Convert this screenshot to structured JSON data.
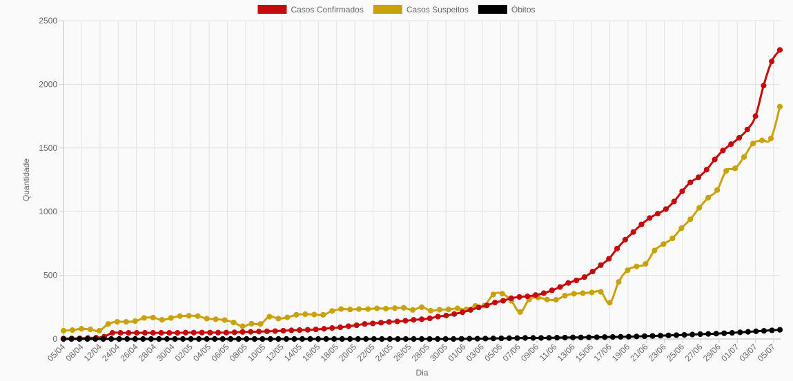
{
  "chart_data": {
    "type": "line",
    "title": "",
    "xlabel": "Dia",
    "ylabel": "Quantidade",
    "ylim": [
      0,
      2500
    ],
    "yticks": [
      0,
      500,
      1000,
      1500,
      2000,
      2500
    ],
    "grid": true,
    "legend_position": "top",
    "x_tick_labels": [
      "05/04",
      "08/04",
      "12/04",
      "24/04",
      "26/04",
      "28/04",
      "30/04",
      "02/05",
      "04/05",
      "06/05",
      "08/05",
      "10/05",
      "12/05",
      "14/05",
      "16/05",
      "18/05",
      "20/05",
      "22/05",
      "24/05",
      "26/05",
      "28/05",
      "30/05",
      "01/06",
      "03/06",
      "05/06",
      "07/06",
      "09/06",
      "11/06",
      "13/06",
      "15/06",
      "17/06",
      "19/06",
      "21/06",
      "23/06",
      "25/06",
      "27/06",
      "29/06",
      "01/07",
      "03/07",
      "05/07"
    ],
    "series": [
      {
        "name": "Casos Confirmados",
        "color": "#c40a0a",
        "values": [
          3,
          4,
          5,
          8,
          10,
          18,
          48,
          48,
          48,
          48,
          48,
          48,
          48,
          48,
          48,
          50,
          50,
          50,
          50,
          50,
          50,
          52,
          55,
          56,
          58,
          60,
          62,
          65,
          68,
          70,
          72,
          75,
          80,
          86,
          92,
          100,
          108,
          118,
          122,
          128,
          134,
          138,
          143,
          150,
          155,
          162,
          176,
          184,
          196,
          210,
          228,
          248,
          264,
          286,
          300,
          320,
          330,
          335,
          345,
          360,
          382,
          408,
          440,
          460,
          486,
          530,
          580,
          630,
          710,
          780,
          840,
          900,
          950,
          985,
          1020,
          1080,
          1160,
          1230,
          1270,
          1330,
          1410,
          1480,
          1530,
          1580,
          1645,
          1750,
          1990,
          2180,
          2270
        ]
      },
      {
        "name": "Casos Suspeitos",
        "color": "#c9a20a",
        "values": [
          65,
          70,
          80,
          75,
          65,
          118,
          135,
          135,
          140,
          165,
          168,
          150,
          165,
          180,
          182,
          180,
          160,
          155,
          148,
          130,
          100,
          120,
          118,
          175,
          160,
          170,
          190,
          195,
          192,
          190,
          220,
          235,
          232,
          235,
          235,
          240,
          238,
          242,
          245,
          228,
          250,
          222,
          230,
          232,
          240,
          232,
          260,
          262,
          350,
          355,
          300,
          212,
          310,
          325,
          310,
          308,
          340,
          355,
          360,
          365,
          370,
          285,
          448,
          540,
          570,
          590,
          695,
          745,
          790,
          870,
          940,
          1030,
          1110,
          1170,
          1320,
          1340,
          1430,
          1535,
          1560,
          1575,
          1825
        ]
      },
      {
        "name": "Óbitos",
        "color": "#000000",
        "values": [
          0,
          0,
          0,
          0,
          0,
          0,
          0,
          0,
          0,
          0,
          0,
          0,
          0,
          0,
          0,
          0,
          0,
          0,
          0,
          0,
          0,
          0,
          0,
          0,
          0,
          0,
          0,
          0,
          0,
          0,
          0,
          0,
          0,
          0,
          0,
          0,
          0,
          0,
          0,
          0,
          0,
          0,
          0,
          0,
          0,
          0,
          0,
          0,
          0,
          0,
          1,
          2,
          2,
          3,
          4,
          5,
          6,
          7,
          8,
          8,
          8,
          9,
          10,
          11,
          12,
          12,
          13,
          14,
          15,
          16,
          17,
          18,
          20,
          22,
          24,
          26,
          28,
          30,
          32,
          35,
          38,
          40,
          42,
          45,
          48,
          52,
          56,
          60,
          64,
          68,
          72
        ]
      }
    ]
  }
}
